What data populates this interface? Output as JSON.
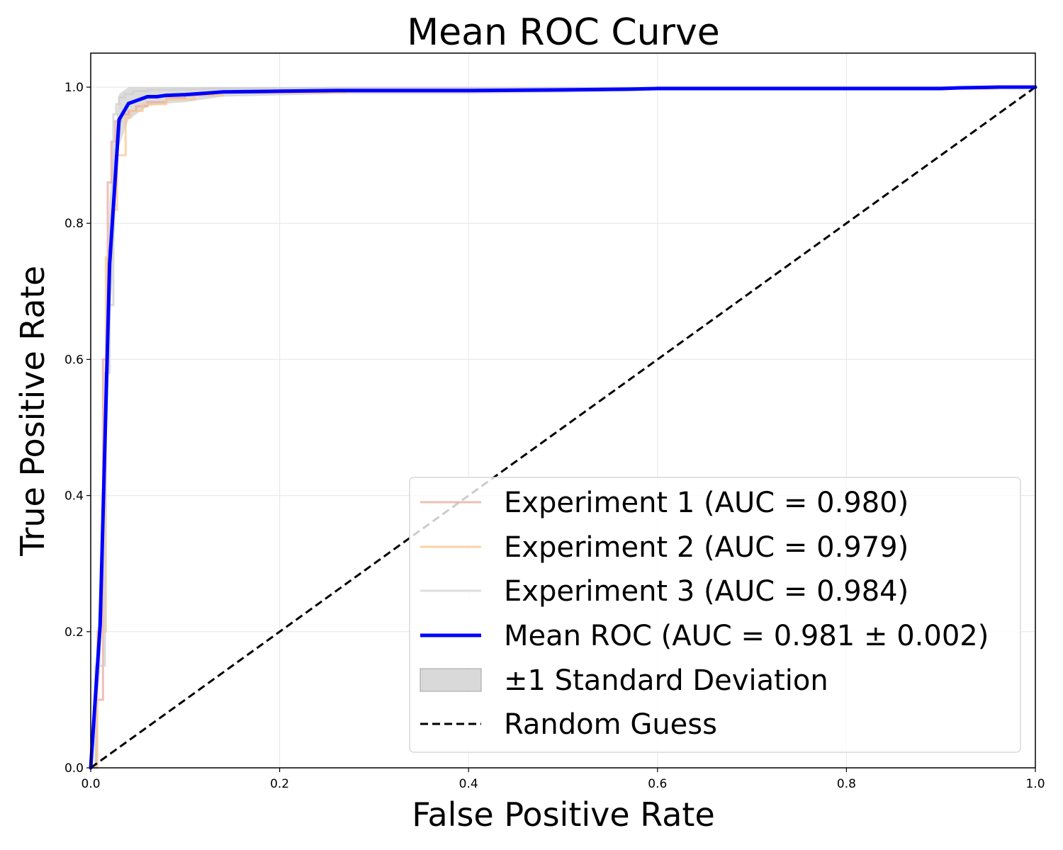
{
  "chart_data": {
    "type": "line",
    "title": "Mean ROC Curve",
    "xlabel": "False Positive Rate",
    "ylabel": "True Positive Rate",
    "xlim": [
      0.0,
      1.0
    ],
    "ylim": [
      0.0,
      1.05
    ],
    "xticks": [
      "0.0",
      "0.2",
      "0.4",
      "0.6",
      "0.8",
      "1.0"
    ],
    "yticks": [
      "0.0",
      "0.2",
      "0.4",
      "0.6",
      "0.8",
      "1.0"
    ],
    "grid": true,
    "legend_position": "lower-right",
    "colors": {
      "exp1": "#e8a49a",
      "exp2": "#f8c890",
      "exp3": "#cfcfcf",
      "mean": "#0000ff",
      "band": "#bfbfbf",
      "random": "#000000",
      "grid": "#e6e6e6"
    },
    "series": [
      {
        "key": "exp1",
        "name": "Experiment 1 (AUC = 0.980)",
        "auc": 0.98,
        "style": "step",
        "x": [
          0.0,
          0.006,
          0.006,
          0.013,
          0.013,
          0.018,
          0.018,
          0.022,
          0.022,
          0.026,
          0.026,
          0.032,
          0.032,
          0.04,
          0.04,
          0.048,
          0.048,
          0.06,
          0.06,
          0.08,
          0.08,
          0.1,
          0.1,
          0.13,
          0.13,
          0.25,
          0.25,
          0.5,
          0.5,
          0.6,
          0.6,
          0.95,
          0.95,
          1.0
        ],
        "y": [
          0.0,
          0.0,
          0.1,
          0.1,
          0.6,
          0.6,
          0.86,
          0.86,
          0.92,
          0.92,
          0.95,
          0.95,
          0.96,
          0.96,
          0.965,
          0.965,
          0.972,
          0.972,
          0.978,
          0.978,
          0.984,
          0.984,
          0.988,
          0.988,
          0.992,
          0.992,
          0.995,
          0.995,
          0.997,
          0.997,
          0.998,
          0.998,
          1.0,
          1.0
        ]
      },
      {
        "key": "exp2",
        "name": "Experiment 2 (AUC = 0.979)",
        "auc": 0.979,
        "style": "step",
        "x": [
          0.0,
          0.007,
          0.007,
          0.016,
          0.016,
          0.022,
          0.022,
          0.028,
          0.028,
          0.037,
          0.037,
          0.042,
          0.042,
          0.055,
          0.055,
          0.08,
          0.08,
          0.11,
          0.11,
          0.14,
          0.14,
          0.27,
          0.27,
          0.5,
          0.5,
          0.6,
          0.6,
          0.96,
          0.96,
          1.0
        ],
        "y": [
          0.0,
          0.0,
          0.2,
          0.2,
          0.75,
          0.75,
          0.82,
          0.82,
          0.9,
          0.9,
          0.955,
          0.955,
          0.965,
          0.965,
          0.975,
          0.975,
          0.982,
          0.982,
          0.988,
          0.988,
          0.992,
          0.992,
          0.995,
          0.995,
          0.997,
          0.997,
          0.998,
          0.998,
          1.0,
          1.0
        ]
      },
      {
        "key": "exp3",
        "name": "Experiment 3 (AUC = 0.984)",
        "auc": 0.984,
        "style": "step",
        "x": [
          0.0,
          0.005,
          0.005,
          0.015,
          0.015,
          0.02,
          0.02,
          0.024,
          0.024,
          0.027,
          0.027,
          0.03,
          0.03,
          0.036,
          0.036,
          0.045,
          0.045,
          0.06,
          0.06,
          0.09,
          0.09,
          0.12,
          0.12,
          0.25,
          0.25,
          0.5,
          0.5,
          0.6,
          0.6,
          0.96,
          0.96,
          1.0
        ],
        "y": [
          0.0,
          0.0,
          0.15,
          0.15,
          0.58,
          0.58,
          0.68,
          0.68,
          0.96,
          0.96,
          0.975,
          0.975,
          0.985,
          0.985,
          0.99,
          0.99,
          0.994,
          0.994,
          0.996,
          0.996,
          0.997,
          0.997,
          0.998,
          0.998,
          0.999,
          0.999,
          0.999,
          0.999,
          1.0,
          1.0,
          1.0,
          1.0
        ]
      },
      {
        "key": "mean",
        "name": "Mean ROC (AUC = 0.981 ± 0.002)",
        "auc_mean": 0.981,
        "auc_std": 0.002,
        "style": "line",
        "x": [
          0.0,
          0.01,
          0.02,
          0.03,
          0.04,
          0.05,
          0.06,
          0.07,
          0.08,
          0.1,
          0.12,
          0.14,
          0.2,
          0.26,
          0.4,
          0.5,
          0.57,
          0.6,
          0.9,
          0.92,
          0.96,
          1.0
        ],
        "y": [
          0.0,
          0.21,
          0.74,
          0.952,
          0.976,
          0.981,
          0.986,
          0.986,
          0.988,
          0.989,
          0.991,
          0.993,
          0.994,
          0.995,
          0.995,
          0.996,
          0.997,
          0.998,
          0.998,
          0.999,
          1.0,
          1.0
        ]
      },
      {
        "key": "band",
        "name": "±1 Standard Deviation",
        "style": "band",
        "x": [
          0.0,
          0.01,
          0.02,
          0.03,
          0.04,
          0.05,
          0.06,
          0.08,
          0.1,
          0.12,
          0.14,
          0.2,
          0.26,
          0.4,
          0.5,
          0.57,
          0.6,
          0.9,
          0.96,
          1.0
        ],
        "upper": [
          0.0,
          0.28,
          0.84,
          0.99,
          1.0,
          1.0,
          1.0,
          1.0,
          1.0,
          1.0,
          1.0,
          1.0,
          1.0,
          1.0,
          1.0,
          1.0,
          1.0,
          1.0,
          1.0,
          1.0
        ],
        "lower": [
          0.0,
          0.14,
          0.64,
          0.914,
          0.952,
          0.962,
          0.972,
          0.976,
          0.978,
          0.982,
          0.986,
          0.988,
          0.99,
          0.99,
          0.992,
          0.994,
          0.996,
          0.996,
          1.0,
          1.0
        ]
      },
      {
        "key": "random",
        "name": "Random Guess",
        "style": "dashed",
        "x": [
          0.0,
          1.0
        ],
        "y": [
          0.0,
          1.0
        ]
      }
    ]
  }
}
